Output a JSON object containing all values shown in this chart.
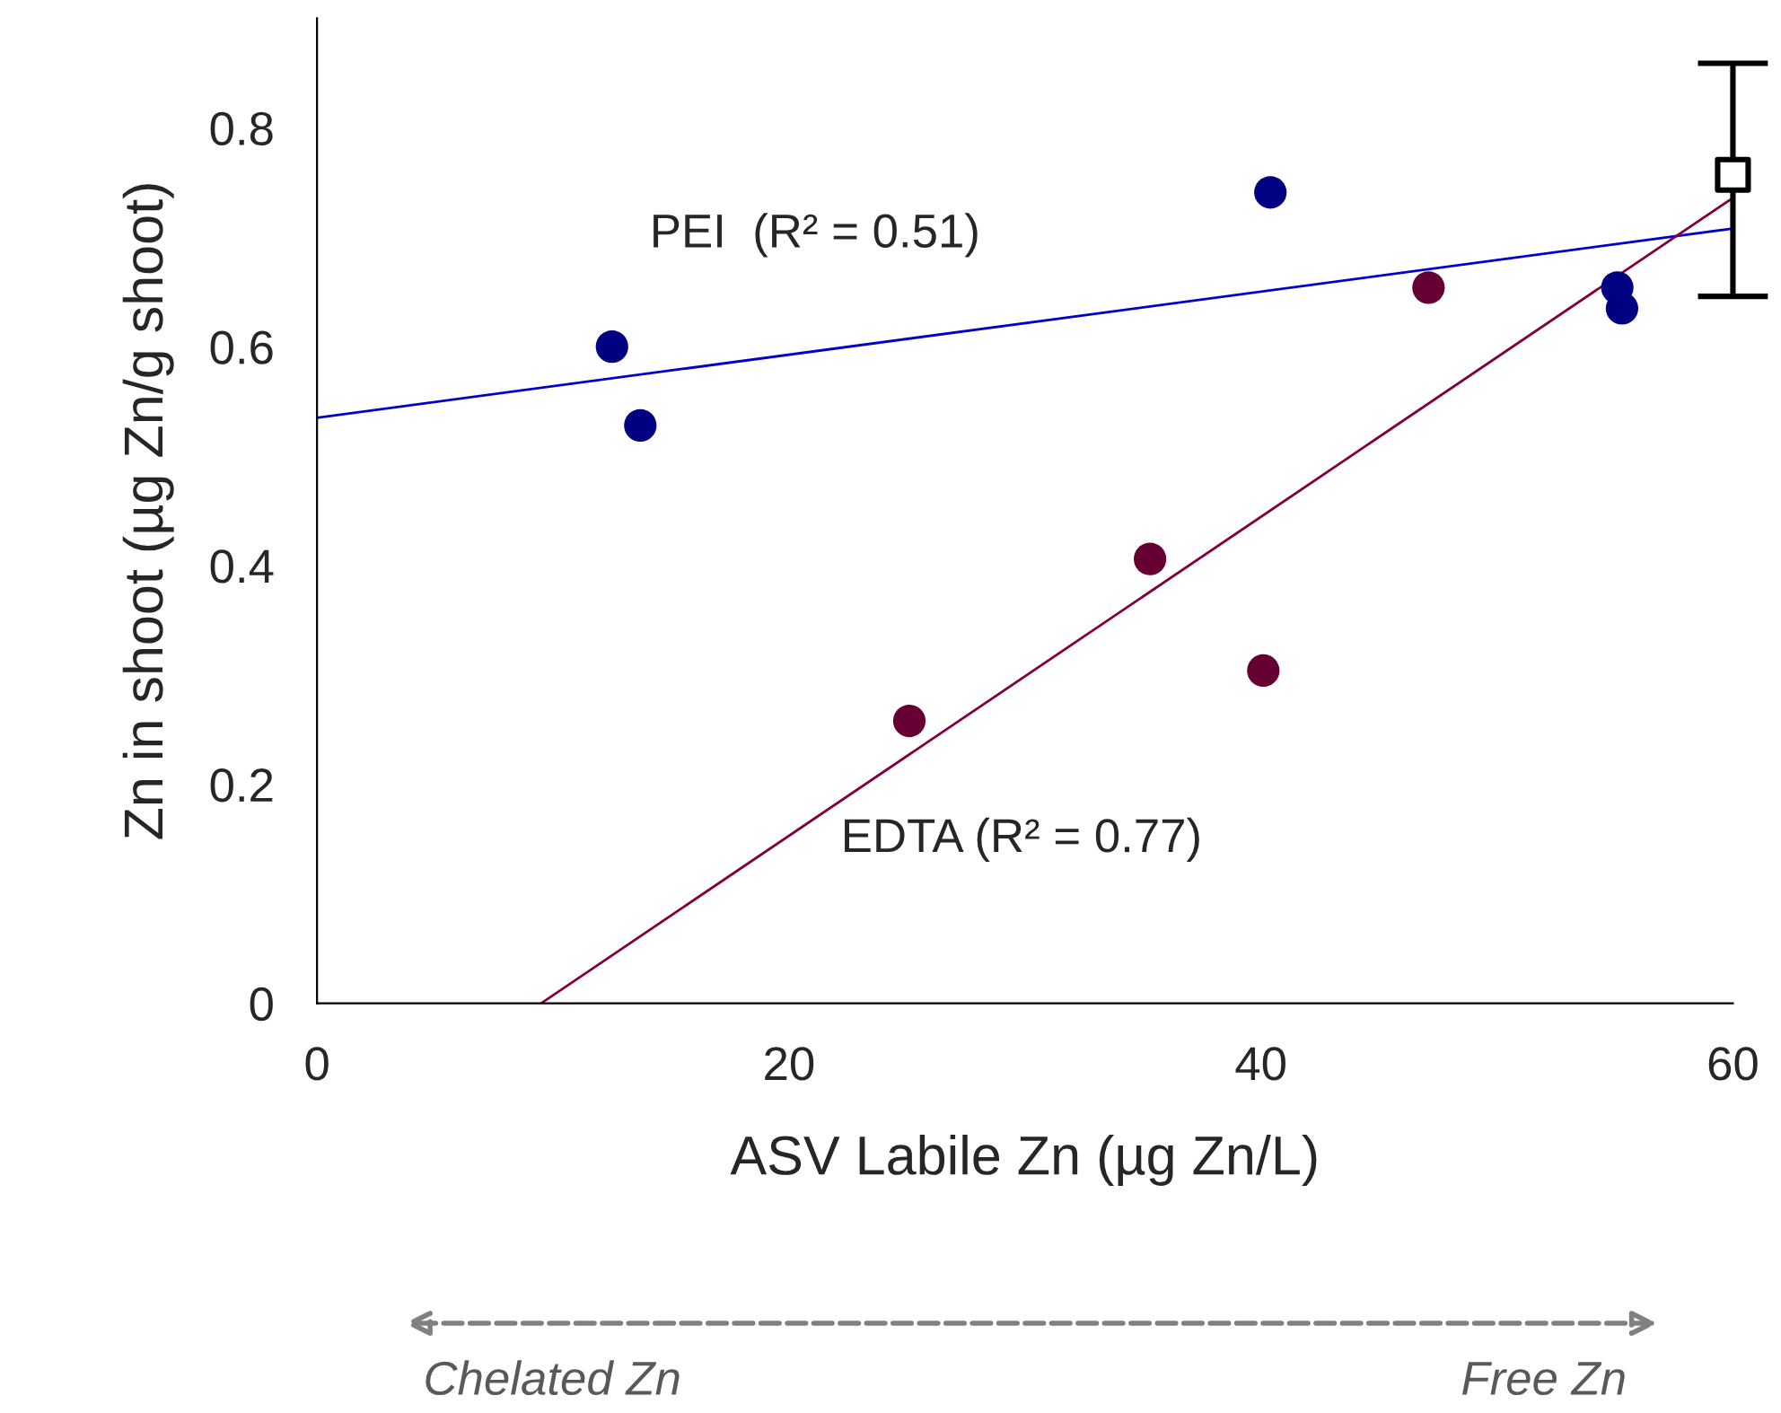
{
  "chart_data": {
    "type": "scatter",
    "xlabel": "ASV Labile Zn (µg Zn/L)",
    "ylabel": "Zn in shoot (µg Zn/g shoot)",
    "xlim": [
      0,
      60
    ],
    "xticks": [
      0,
      20,
      40,
      60
    ],
    "ylim": [
      0,
      0.9
    ],
    "yticks": [
      {
        "value": 0,
        "label": "0"
      },
      0.2,
      0.4,
      0.6,
      0.8
    ],
    "grid": false,
    "legend": false,
    "series": [
      {
        "color": "#000080",
        "marker": "circle",
        "x": [
          12.5,
          13.7,
          40.4,
          55.1,
          55.3
        ],
        "values": [
          0.6,
          0.528,
          0.741,
          0.654,
          0.635
        ]
      },
      {
        "color": "#660033",
        "marker": "circle",
        "x": [
          25.1,
          35.3,
          40.1,
          47.1
        ],
        "values": [
          0.258,
          0.406,
          0.304,
          0.654
        ]
      },
      {
        "color": "#000000",
        "marker": "square",
        "x": [
          60
        ],
        "values": [
          0.757
        ],
        "errors": [
          [
            0.646,
            0.859
          ]
        ]
      },
      {
        "type": "line",
        "color": "#0000cc",
        "marker": "none",
        "line_style": "solid",
        "x": [
          0,
          60
        ],
        "values": [
          0.535,
          0.708
        ]
      },
      {
        "type": "line",
        "color": "#800040",
        "marker": "none",
        "line_style": "solid",
        "x": [
          9.5,
          60
        ],
        "values": [
          0,
          0.736
        ]
      }
    ],
    "annotations": [
      "PEI  (R² = 0.51)",
      "EDTA (R² = 0.77)",
      "Chelated Zn",
      "Free Zn"
    ]
  }
}
